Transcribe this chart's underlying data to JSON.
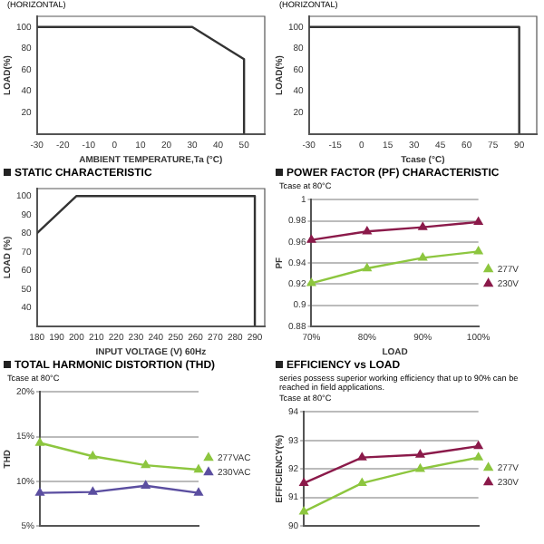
{
  "chart_data": [
    {
      "type": "line",
      "xlabel": "AMBIENT TEMPERATURE,Ta (°C)",
      "ylabel": "LOAD(%)",
      "annotations": [
        "(HORIZONTAL)"
      ],
      "x": [
        -30,
        30,
        50,
        50
      ],
      "series": [
        {
          "color": "#333333",
          "values": [
            100,
            100,
            70,
            0
          ]
        }
      ],
      "xlim": [
        -30,
        58
      ],
      "xticks": [
        -30,
        -20,
        -10,
        0,
        10,
        20,
        30,
        40,
        50
      ],
      "ylim": [
        0,
        110
      ],
      "yticks": [
        20,
        40,
        60,
        80,
        100
      ],
      "grid": false,
      "marker": "none"
    },
    {
      "type": "line",
      "xlabel": "Tcase (°C)",
      "ylabel": "LOAD(%)",
      "annotations": [
        "(HORIZONTAL)"
      ],
      "x": [
        -30,
        90,
        90
      ],
      "series": [
        {
          "color": "#333333",
          "values": [
            100,
            100,
            0
          ]
        }
      ],
      "xlim": [
        -30,
        100
      ],
      "xticks": [
        -30,
        -15,
        0,
        15,
        30,
        45,
        60,
        75,
        90
      ],
      "ylim": [
        0,
        110
      ],
      "yticks": [
        20,
        40,
        60,
        80,
        100
      ],
      "grid": false,
      "marker": "none"
    },
    {
      "type": "line",
      "title": "STATIC CHARACTERISTIC",
      "xlabel": "INPUT VOLTAGE (V) 60Hz",
      "ylabel": "LOAD (%)",
      "x": [
        180,
        200,
        290,
        290
      ],
      "series": [
        {
          "color": "#333333",
          "values": [
            80,
            100,
            100,
            30
          ]
        }
      ],
      "xlim": [
        180,
        295
      ],
      "xticks": [
        180,
        190,
        200,
        210,
        220,
        230,
        240,
        250,
        260,
        270,
        280,
        290
      ],
      "ylim": [
        30,
        104
      ],
      "yticks": [
        40,
        50,
        60,
        70,
        80,
        90,
        100
      ],
      "grid": false,
      "marker": "none"
    },
    {
      "type": "line",
      "title": "POWER FACTOR (PF) CHARACTERISTIC",
      "annotations": [
        "Tcase at 80°C"
      ],
      "xlabel": "LOAD",
      "ylabel": "PF",
      "categories": [
        "70%",
        "80%",
        "90%",
        "100%"
      ],
      "series": [
        {
          "name": "277V",
          "color": "#8dc63f",
          "values": [
            0.921,
            0.935,
            0.945,
            0.951
          ]
        },
        {
          "name": "230V",
          "color": "#8b1a4a",
          "values": [
            0.962,
            0.97,
            0.974,
            0.979
          ]
        }
      ],
      "ylim": [
        0.88,
        1
      ],
      "yticks": [
        0.88,
        0.9,
        0.92,
        0.94,
        0.96,
        0.98,
        1
      ],
      "grid": "y",
      "legend": "right",
      "marker": "triangle"
    },
    {
      "type": "line",
      "title": "TOTAL HARMONIC DISTORTION (THD)",
      "annotations": [
        "Tcase at 80°C"
      ],
      "ylabel": "THD",
      "categories": [
        null,
        null,
        null,
        null
      ],
      "series": [
        {
          "name": "277VAC",
          "color": "#8dc63f",
          "values": [
            14.3,
            12.8,
            11.8,
            11.3
          ]
        },
        {
          "name": "230VAC",
          "color": "#5b4ea0",
          "values": [
            8.7,
            8.8,
            9.5,
            8.7
          ]
        }
      ],
      "ylim": [
        5,
        20
      ],
      "yticks": [
        {
          "value": 5,
          "label": "5%"
        },
        {
          "value": 10,
          "label": "10%"
        },
        {
          "value": 15,
          "label": "15%"
        },
        {
          "value": 20,
          "label": "20%"
        }
      ],
      "grid": "y",
      "legend": "right",
      "marker": "triangle"
    },
    {
      "type": "line",
      "title": "EFFICIENCY vs LOAD",
      "annotations": [
        "series possess superior working efficiency that up to 90% can be reached in field applications.",
        "Tcase at 80°C"
      ],
      "ylabel": "EFFICIENCY(%)",
      "categories": [
        null,
        null,
        null,
        null
      ],
      "series": [
        {
          "name": "277V",
          "color": "#8dc63f",
          "values": [
            90.5,
            91.5,
            92.0,
            92.4
          ]
        },
        {
          "name": "230V",
          "color": "#8b1a4a",
          "values": [
            91.5,
            92.4,
            92.5,
            92.8
          ]
        }
      ],
      "ylim": [
        90,
        94
      ],
      "yticks": [
        90,
        91,
        92,
        93,
        94
      ],
      "grid": "y",
      "legend": "right",
      "marker": "triangle"
    }
  ]
}
